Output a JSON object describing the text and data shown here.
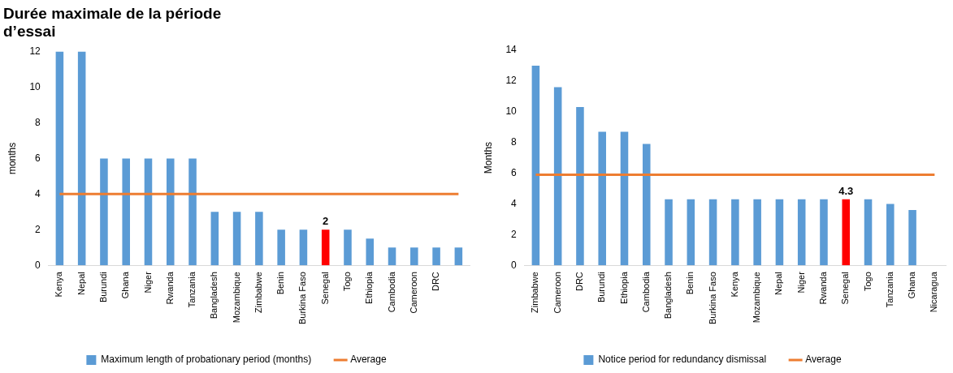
{
  "chart_data": [
    {
      "type": "bar",
      "title": "Durée maximale de la période d’essai",
      "ylabel": "months",
      "categories": [
        "Kenya",
        "Nepal",
        "Burundi",
        "Ghana",
        "Niger",
        "Rwanda",
        "Tanzania",
        "Bangladesh",
        "Mozambique",
        "Zimbabwe",
        "Benin",
        "Burkina Faso",
        "Senegal",
        "Togo",
        "Ethiopia",
        "Cambodia",
        "Cameroon",
        "DRC",
        null
      ],
      "series": [
        {
          "name": "Maximum length of probationary period (months)",
          "color": "#5b9bd5",
          "colors": [
            "#5b9bd5",
            "#5b9bd5",
            "#5b9bd5",
            "#5b9bd5",
            "#5b9bd5",
            "#5b9bd5",
            "#5b9bd5",
            "#5b9bd5",
            "#5b9bd5",
            "#5b9bd5",
            "#5b9bd5",
            "#5b9bd5",
            "#ff0000",
            "#5b9bd5",
            "#5b9bd5",
            "#5b9bd5",
            "#5b9bd5",
            "#5b9bd5",
            "#5b9bd5"
          ],
          "values": [
            12,
            12,
            6,
            6,
            6,
            6,
            6,
            3,
            3,
            3,
            2,
            2,
            2,
            2,
            1.5,
            1,
            1,
            1,
            1
          ],
          "value_labels": [
            null,
            null,
            null,
            null,
            null,
            null,
            null,
            null,
            null,
            null,
            null,
            null,
            "2",
            null,
            null,
            null,
            null,
            null,
            null
          ]
        },
        {
          "type": "line",
          "name": "Average",
          "color": "#ed7d31",
          "values": [
            4,
            4,
            4,
            4,
            4,
            4,
            4,
            4,
            4,
            4,
            4,
            4,
            4,
            4,
            4,
            4,
            4,
            4,
            4
          ]
        }
      ],
      "ylim": [
        0,
        12
      ],
      "yticks": [
        0,
        2,
        4,
        6,
        8,
        10,
        12
      ],
      "grid": false,
      "legend": "bottom",
      "marker": "none"
    },
    {
      "type": "bar",
      "ylabel": "Months",
      "categories": [
        "Zimbabwe",
        "Cameroon",
        "DRC",
        "Burundi",
        "Ethiopia",
        "Cambodia",
        "Bangladesh",
        "Benin",
        "Burkina Faso",
        "Kenya",
        "Mozambique",
        "Nepal",
        "Niger",
        "Rwanda",
        "Senegal",
        "Togo",
        "Tanzania",
        "Ghana",
        "Nicaragua"
      ],
      "series": [
        {
          "name": "Notice period for redundancy dismissal",
          "color": "#5b9bd5",
          "colors": [
            "#5b9bd5",
            "#5b9bd5",
            "#5b9bd5",
            "#5b9bd5",
            "#5b9bd5",
            "#5b9bd5",
            "#5b9bd5",
            "#5b9bd5",
            "#5b9bd5",
            "#5b9bd5",
            "#5b9bd5",
            "#5b9bd5",
            "#5b9bd5",
            "#5b9bd5",
            "#ff0000",
            "#5b9bd5",
            "#5b9bd5",
            "#5b9bd5",
            "#5b9bd5"
          ],
          "values": [
            13,
            11.6,
            10.3,
            8.7,
            8.7,
            7.9,
            4.3,
            4.3,
            4.3,
            4.3,
            4.3,
            4.3,
            4.3,
            4.3,
            4.3,
            4.3,
            4,
            3.6,
            0
          ],
          "value_labels": [
            null,
            null,
            null,
            null,
            null,
            null,
            null,
            null,
            null,
            null,
            null,
            null,
            null,
            null,
            "4.3",
            null,
            null,
            null,
            null
          ]
        },
        {
          "type": "line",
          "name": "Average",
          "color": "#ed7d31",
          "values": [
            5.9,
            5.9,
            5.9,
            5.9,
            5.9,
            5.9,
            5.9,
            5.9,
            5.9,
            5.9,
            5.9,
            5.9,
            5.9,
            5.9,
            5.9,
            5.9,
            5.9,
            5.9,
            5.9
          ]
        }
      ],
      "ylim": [
        0,
        14
      ],
      "yticks": [
        0,
        2,
        4,
        6,
        8,
        10,
        12,
        14
      ],
      "grid": false,
      "legend": "bottom",
      "marker": "none"
    }
  ]
}
